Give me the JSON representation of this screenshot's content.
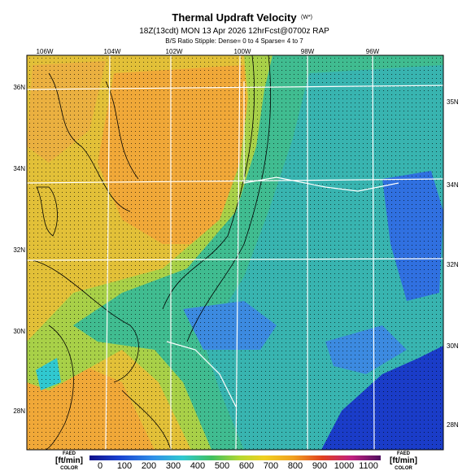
{
  "header": {
    "title": "Thermal Updraft Velocity",
    "title_note": "(W*)",
    "subtitle": "18Z(13cdt) MON 13 Apr 2026 12hrFcst@0700z RAP",
    "note": "B/S Ratio Stipple: Dense= 0 to 4 Sparse= 4 to 7"
  },
  "map": {
    "longitudes": [
      "106W",
      "104W",
      "102W",
      "100W",
      "98W",
      "96W"
    ],
    "latitudes_left": [
      "36N",
      "34N",
      "32N",
      "30N",
      "28N"
    ],
    "latitudes_right": [
      "35N",
      "34N",
      "32N",
      "30N",
      "28N"
    ]
  },
  "colorbar": {
    "left_label": [
      "FAED",
      "[ft/min]",
      "COLOR"
    ],
    "right_label": [
      "FAED",
      "[ft/min]",
      "COLOR"
    ],
    "ticks": [
      0,
      100,
      200,
      300,
      400,
      500,
      600,
      700,
      800,
      900,
      1000,
      1100
    ]
  }
}
